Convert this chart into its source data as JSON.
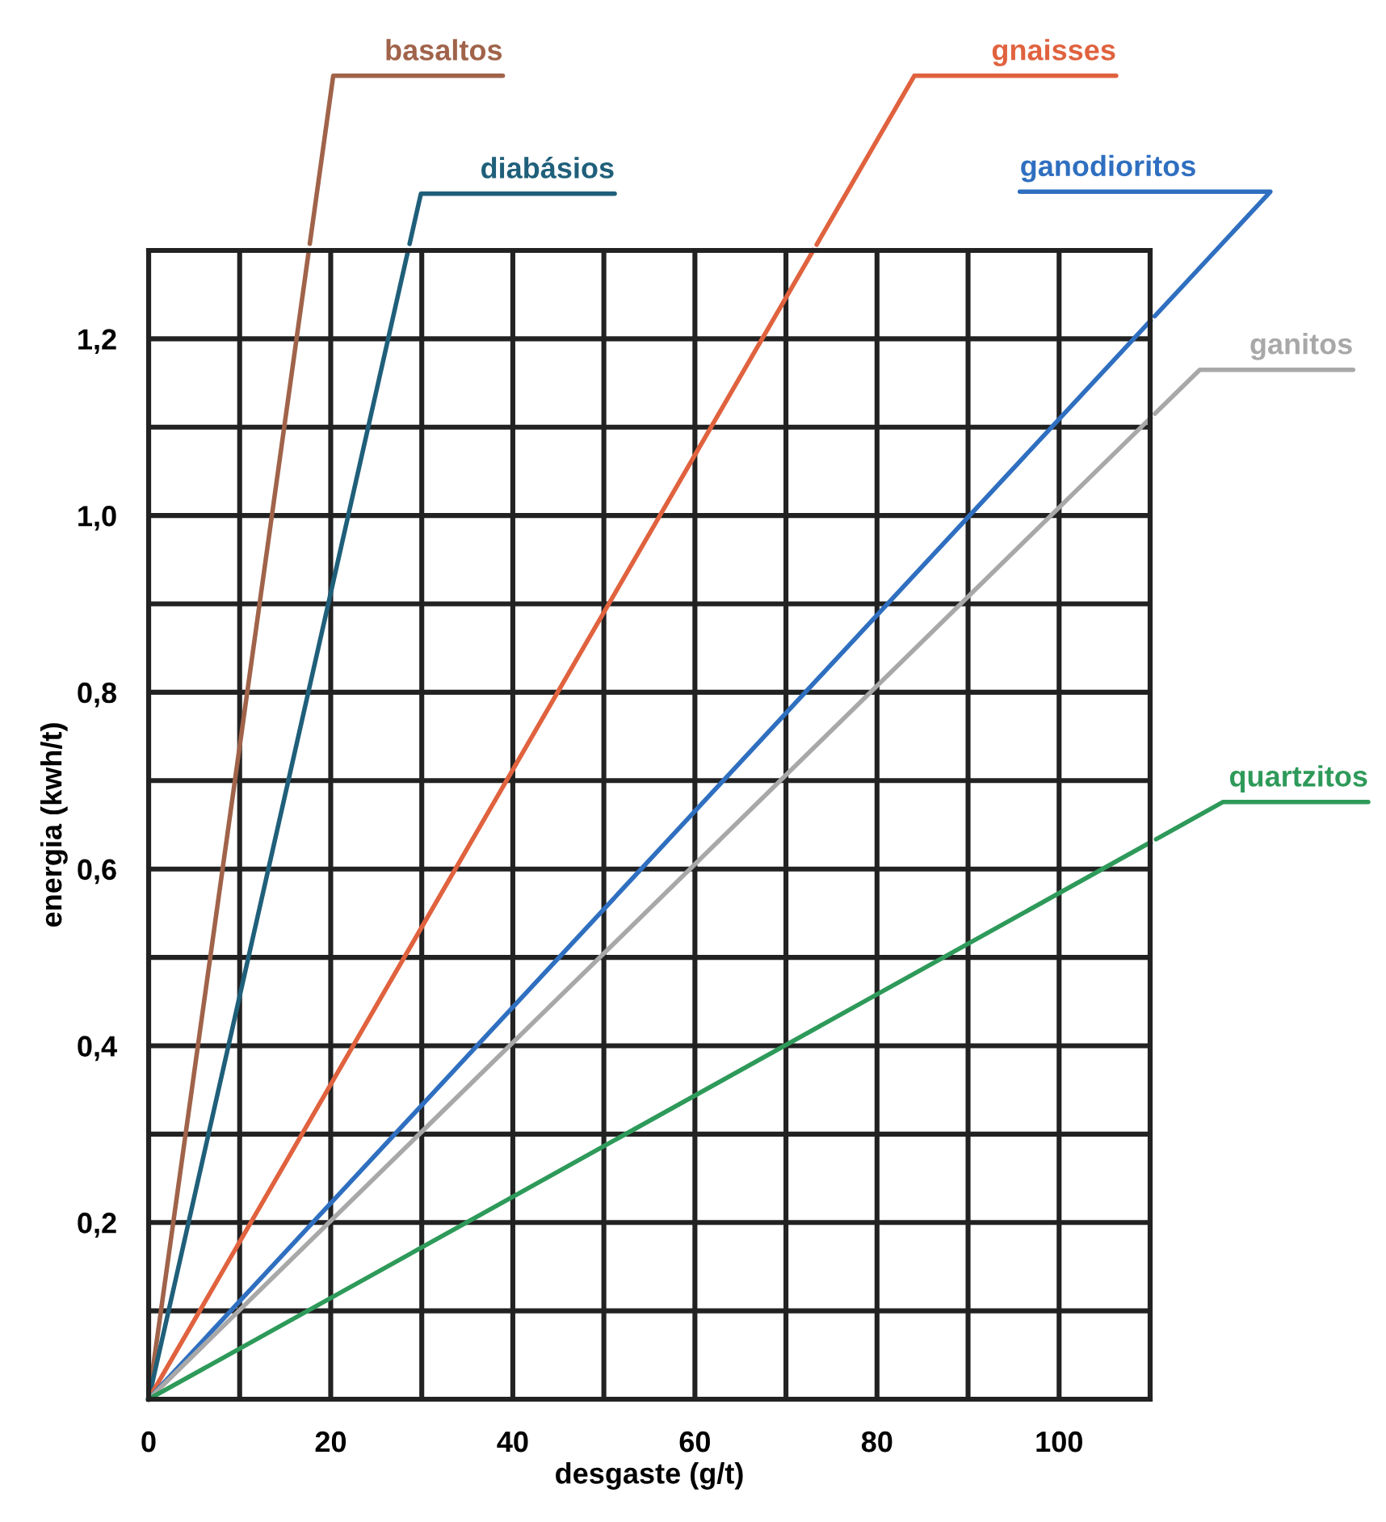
{
  "chart_data": {
    "type": "line",
    "xlabel": "desgaste (g/t)",
    "ylabel": "energia (kwh/t)",
    "xlim": [
      0,
      110
    ],
    "ylim": [
      0,
      1.3
    ],
    "xticks": [
      0,
      {
        "value": 10,
        "label": null
      },
      20,
      {
        "value": 30,
        "label": null
      },
      40,
      {
        "value": 50,
        "label": null
      },
      60,
      {
        "value": 70,
        "label": null
      },
      80,
      {
        "value": 90,
        "label": null
      },
      100,
      {
        "value": 110,
        "label": null
      }
    ],
    "yticks": [
      {
        "value": 0,
        "label": null
      },
      {
        "value": 0.1,
        "label": null
      },
      {
        "value": 0.2,
        "label": "0,2"
      },
      {
        "value": 0.3,
        "label": null
      },
      {
        "value": 0.4,
        "label": "0,4"
      },
      {
        "value": 0.5,
        "label": null
      },
      {
        "value": 0.6,
        "label": "0,6"
      },
      {
        "value": 0.7,
        "label": null
      },
      {
        "value": 0.8,
        "label": "0,8"
      },
      {
        "value": 0.9,
        "label": null
      },
      {
        "value": 1.0,
        "label": "1,0"
      },
      {
        "value": 1.1,
        "label": null
      },
      {
        "value": 1.2,
        "label": "1,2"
      },
      {
        "value": 1.3,
        "label": null
      }
    ],
    "grid": true,
    "legend": false,
    "marker": "none",
    "line_style": "solid",
    "series": [
      {
        "name": "basaltos",
        "color": "#a0634a",
        "x": [
          0,
          17.6
        ],
        "values": [
          0,
          1.3
        ]
      },
      {
        "name": "diabásios",
        "color": "#1f5f7a",
        "x": [
          0,
          28.5
        ],
        "values": [
          0,
          1.3
        ]
      },
      {
        "name": "gnaisses",
        "color": "#e0623e",
        "x": [
          0,
          73
        ],
        "values": [
          0,
          1.3
        ]
      },
      {
        "name": "ganodioritos",
        "color": "#2f6fc0",
        "x": [
          0,
          110
        ],
        "values": [
          0,
          1.22
        ]
      },
      {
        "name": "ganitos",
        "color": "#a8a8a8",
        "x": [
          0,
          110
        ],
        "values": [
          0,
          1.11
        ]
      },
      {
        "name": "quartzitos",
        "color": "#2e9a5a",
        "x": [
          0,
          110
        ],
        "values": [
          0,
          0.63
        ]
      }
    ]
  }
}
